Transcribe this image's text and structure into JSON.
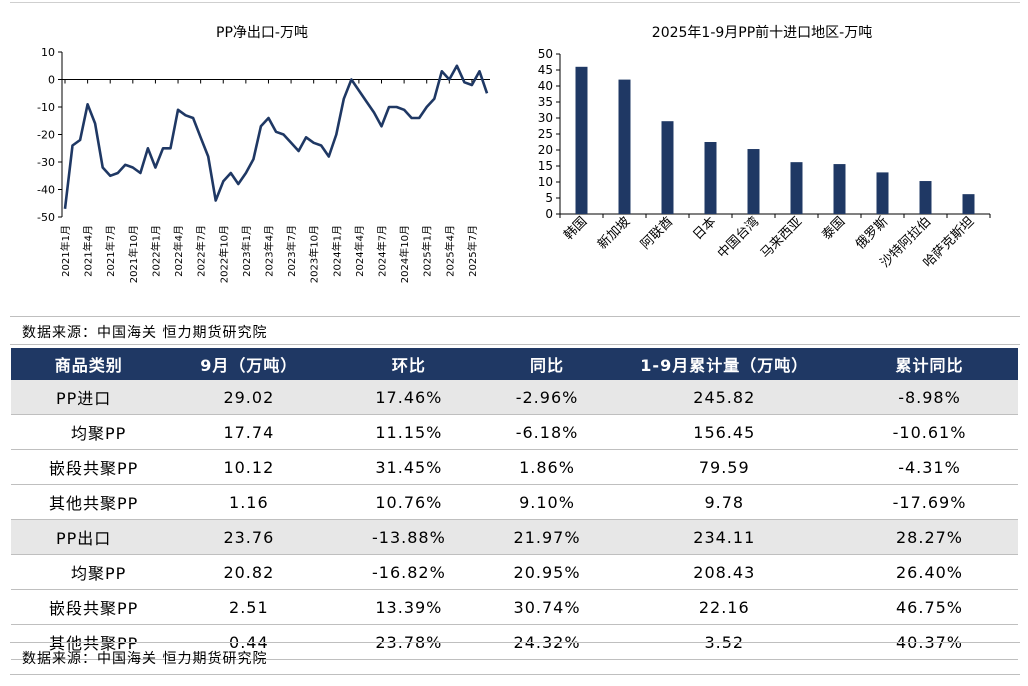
{
  "chart_data": [
    {
      "type": "line",
      "title": "PP净出口-万吨",
      "ylim": [
        -50,
        10
      ],
      "yticks": [
        10,
        0,
        -10,
        -20,
        -30,
        -40,
        -50
      ],
      "x_tick_labels": [
        "2021年1月",
        "2021年4月",
        "2021年7月",
        "2021年10月",
        "2022年1月",
        "2022年4月",
        "2022年7月",
        "2022年10月",
        "2023年1月",
        "2023年4月",
        "2023年7月",
        "2023年10月",
        "2024年1月",
        "2024年4月",
        "2024年7月",
        "2024年10月",
        "2025年1月",
        "2025年4月",
        "2025年7月"
      ],
      "series": [
        {
          "name": "PP净出口",
          "color": "#1f3864",
          "values": [
            -47,
            -24,
            -22,
            -9,
            -16,
            -32,
            -35,
            -34,
            -31,
            -32,
            -34,
            -25,
            -32,
            -25,
            -25,
            -11,
            -13,
            -14,
            -21,
            -28,
            -44,
            -37,
            -34,
            -38,
            -34,
            -29,
            -17,
            -14,
            -19,
            -20,
            -23,
            -26,
            -21,
            -23,
            -24,
            -28,
            -20,
            -7,
            0,
            -4,
            -8,
            -12,
            -17,
            -10,
            -10,
            -11,
            -14,
            -14,
            -10,
            -7,
            3,
            0,
            5,
            -1,
            -2,
            3,
            -5
          ]
        }
      ]
    },
    {
      "type": "bar",
      "title": "2025年1-9月PP前十进口地区-万吨",
      "ylim": [
        0,
        50
      ],
      "yticks": [
        0,
        5,
        10,
        15,
        20,
        25,
        30,
        35,
        40,
        45,
        50
      ],
      "categories": [
        "韩国",
        "新加坡",
        "阿联酋",
        "日本",
        "中国台湾",
        "马来西亚",
        "泰国",
        "俄罗斯",
        "沙特阿拉伯",
        "哈萨克斯坦"
      ],
      "values": [
        46,
        42,
        29,
        22.5,
        20.3,
        16.2,
        15.6,
        13,
        10.3,
        6.2
      ],
      "color": "#1f3864"
    }
  ],
  "source_label_1": "数据来源：中国海关 恒力期货研究院",
  "source_label_2": "数据来源：中国海关 恒力期货研究院",
  "table": {
    "headers": [
      "商品类别",
      "9月（万吨）",
      "环比",
      "同比",
      "1-9月累计量（万吨）",
      "累计同比"
    ],
    "rows": [
      {
        "cells": [
          "PP进口",
          "29.02",
          "17.46%",
          "-2.96%",
          "245.82",
          "-8.98%"
        ]
      },
      {
        "cells": [
          "均聚PP",
          "17.74",
          "11.15%",
          "-6.18%",
          "156.45",
          "-10.61%"
        ]
      },
      {
        "cells": [
          "嵌段共聚PP",
          "10.12",
          "31.45%",
          "1.86%",
          "79.59",
          "-4.31%"
        ]
      },
      {
        "cells": [
          "其他共聚PP",
          "1.16",
          "10.76%",
          "9.10%",
          "9.78",
          "-17.69%"
        ]
      },
      {
        "cells": [
          "PP出口",
          "23.76",
          "-13.88%",
          "21.97%",
          "234.11",
          "28.27%"
        ]
      },
      {
        "cells": [
          "均聚PP",
          "20.82",
          "-16.82%",
          "20.95%",
          "208.43",
          "26.40%"
        ]
      },
      {
        "cells": [
          "嵌段共聚PP",
          "2.51",
          "13.39%",
          "30.74%",
          "22.16",
          "46.75%"
        ]
      },
      {
        "cells": [
          "其他共聚PP",
          "0.44",
          "23.78%",
          "24.32%",
          "3.52",
          "40.37%"
        ]
      }
    ]
  }
}
